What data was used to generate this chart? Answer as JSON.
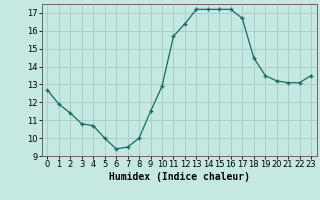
{
  "x": [
    0,
    1,
    2,
    3,
    4,
    5,
    6,
    7,
    8,
    9,
    10,
    11,
    12,
    13,
    14,
    15,
    16,
    17,
    18,
    19,
    20,
    21,
    22,
    23
  ],
  "y": [
    12.7,
    11.9,
    11.4,
    10.8,
    10.7,
    10.0,
    9.4,
    9.5,
    10.0,
    11.5,
    12.9,
    15.7,
    16.4,
    17.2,
    17.2,
    17.2,
    17.2,
    16.7,
    14.5,
    13.5,
    13.2,
    13.1,
    13.1,
    13.5
  ],
  "xlabel": "Humidex (Indice chaleur)",
  "ylim": [
    9,
    17.5
  ],
  "xlim": [
    -0.5,
    23.5
  ],
  "bg_color": "#c5e8e2",
  "grid_color": "#a8d0cb",
  "line_color": "#1a6b5a",
  "marker_color": "#1a6b5a",
  "yticks": [
    9,
    10,
    11,
    12,
    13,
    14,
    15,
    16,
    17
  ],
  "xtick_labels": [
    "0",
    "1",
    "2",
    "3",
    "4",
    "5",
    "6",
    "7",
    "8",
    "9",
    "10",
    "11",
    "12",
    "13",
    "14",
    "15",
    "16",
    "17",
    "18",
    "19",
    "20",
    "21",
    "22",
    "23"
  ],
  "tick_fontsize": 6.0,
  "xlabel_fontsize": 7.0
}
